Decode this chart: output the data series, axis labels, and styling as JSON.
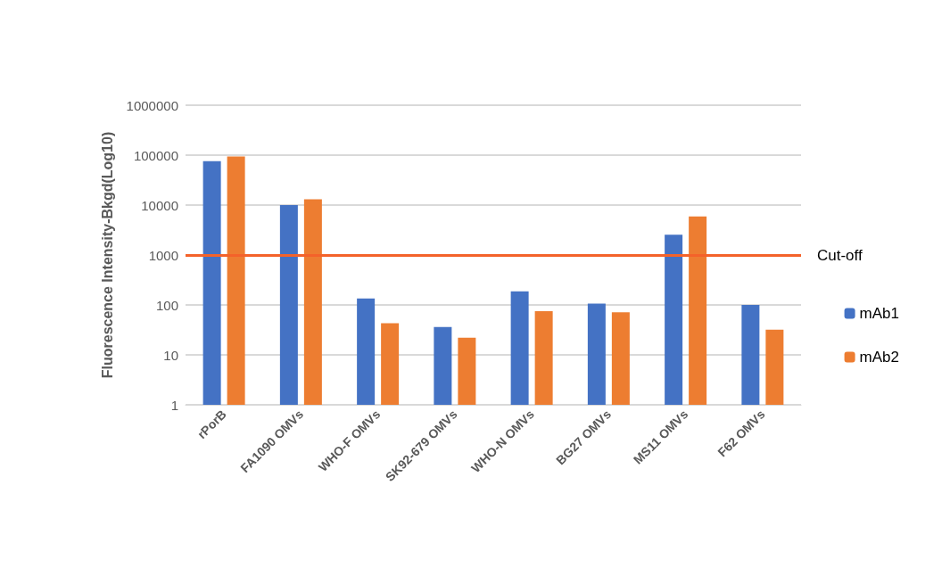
{
  "chart_data": {
    "type": "bar",
    "ylabel": "Fluorescence Intensity-Bkgd(Log10)",
    "categories": [
      "rPorB",
      "FA1090 OMVs",
      "WHO-F OMVs",
      "SK92-679 OMVs",
      "WHO-N OMVs",
      "BG27 OMVs",
      "MS11 OMVs",
      "F62 OMVs"
    ],
    "series": [
      {
        "name": "mAb1",
        "color": "#4472c4",
        "values": [
          76000,
          10000,
          135,
          36,
          188,
          106,
          2560,
          100
        ]
      },
      {
        "name": "mAb2",
        "color": "#ed7d31",
        "values": [
          94000,
          13000,
          43,
          22,
          75,
          71,
          5900,
          32
        ]
      }
    ],
    "ylim": [
      1,
      1000000
    ],
    "yticks": [
      1,
      10,
      100,
      1000,
      10000,
      100000,
      1000000
    ],
    "log": "y",
    "grid": "y",
    "legend": "right",
    "ref_lines": [
      {
        "axis": "y",
        "value": 1000,
        "label": "Cut-off",
        "color": "#f4622a",
        "line_style": "solid"
      }
    ]
  }
}
